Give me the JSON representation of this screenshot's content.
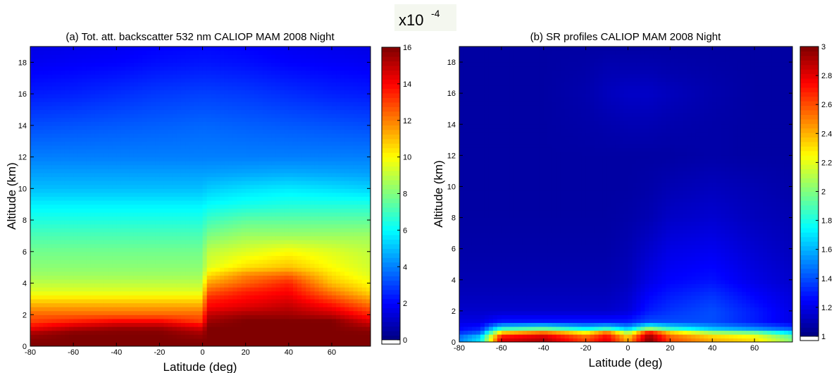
{
  "scale_note": {
    "base": "x10",
    "exp": "-4"
  },
  "chart_data": [
    {
      "type": "heatmap",
      "title": "(a) Tot. att. backscatter 532 nm CALIOP MAM 2008 Night",
      "xlabel": "Latitude (deg)",
      "ylabel": "Altitude (km)",
      "xlim": [
        -80,
        78
      ],
      "ylim": [
        0,
        19
      ],
      "xticks": [
        "-80",
        "-60",
        "-40",
        "-20",
        "0",
        "20",
        "40",
        "60"
      ],
      "xtick_values": [
        -80,
        -60,
        -40,
        -20,
        0,
        20,
        40,
        60
      ],
      "yticks": [
        "0",
        "2",
        "4",
        "6",
        "8",
        "10",
        "12",
        "14",
        "16",
        "18"
      ],
      "ytick_values": [
        0,
        2,
        4,
        6,
        8,
        10,
        12,
        14,
        16,
        18
      ],
      "colorbar": {
        "min": 0,
        "max": 16,
        "ticks": [
          "0",
          "2",
          "4",
          "6",
          "8",
          "10",
          "12",
          "14",
          "16"
        ],
        "tick_values": [
          0,
          2,
          4,
          6,
          8,
          10,
          12,
          14,
          16
        ]
      },
      "colormap": "jet",
      "rows": [
        {
          "lat": [
            -80,
            -60,
            -40,
            -20,
            0,
            2,
            20,
            40,
            60,
            78
          ],
          "v": [
            16,
            16,
            16,
            16,
            16,
            16,
            16,
            16,
            16,
            16
          ],
          "alt": 0.2
        },
        {
          "lat": [
            -80,
            -60,
            -40,
            -20,
            0,
            2,
            20,
            40,
            60,
            78
          ],
          "v": [
            15.5,
            16,
            16,
            16,
            15.5,
            16,
            16,
            16,
            16,
            16
          ],
          "alt": 0.8
        },
        {
          "lat": [
            -80,
            -60,
            -40,
            -20,
            0,
            2,
            20,
            40,
            60,
            78
          ],
          "v": [
            14,
            15,
            15.5,
            15.5,
            14.5,
            16,
            16,
            16,
            16,
            15.5
          ],
          "alt": 1.2
        },
        {
          "lat": [
            -80,
            -60,
            -40,
            -20,
            0,
            2,
            20,
            40,
            60,
            78
          ],
          "v": [
            13,
            13.5,
            14,
            14,
            13,
            15.5,
            16,
            16,
            16,
            14.5
          ],
          "alt": 1.6
        },
        {
          "lat": [
            -80,
            -60,
            -40,
            -20,
            0,
            2,
            20,
            40,
            60,
            78
          ],
          "v": [
            12.5,
            12.5,
            12.5,
            12.5,
            12.5,
            15,
            15.5,
            15.5,
            15,
            13.5
          ],
          "alt": 2
        },
        {
          "lat": [
            -80,
            -60,
            -40,
            -20,
            0,
            2,
            20,
            40,
            60,
            78
          ],
          "v": [
            11.5,
            11.5,
            11.5,
            11.5,
            11.5,
            14,
            14.5,
            15,
            14,
            12.5
          ],
          "alt": 2.5
        },
        {
          "lat": [
            -80,
            -60,
            -40,
            -20,
            0,
            2,
            20,
            40,
            60,
            78
          ],
          "v": [
            10.5,
            10.5,
            10.5,
            10.5,
            10.5,
            13.5,
            14,
            14.5,
            13,
            11.5
          ],
          "alt": 3
        },
        {
          "lat": [
            -80,
            -60,
            -40,
            -20,
            0,
            2,
            20,
            40,
            60,
            78
          ],
          "v": [
            9.5,
            9.5,
            9.5,
            9.5,
            9.5,
            12.5,
            13.5,
            14,
            12,
            10.5
          ],
          "alt": 3.5
        },
        {
          "lat": [
            -80,
            -60,
            -40,
            -20,
            0,
            2,
            20,
            40,
            60,
            78
          ],
          "v": [
            9,
            9,
            9,
            9,
            9,
            11.5,
            12.5,
            13.5,
            11,
            10
          ],
          "alt": 4
        },
        {
          "lat": [
            -80,
            -60,
            -40,
            -20,
            0,
            2,
            20,
            40,
            60,
            78
          ],
          "v": [
            8.5,
            8.5,
            8.5,
            8.5,
            8.5,
            10.5,
            12,
            12.5,
            10.5,
            9.5
          ],
          "alt": 4.5
        },
        {
          "lat": [
            -80,
            -60,
            -40,
            -20,
            0,
            2,
            20,
            40,
            60,
            78
          ],
          "v": [
            8.2,
            8.2,
            8.2,
            8.2,
            8.2,
            9.5,
            10.5,
            11,
            10,
            9.3
          ],
          "alt": 5
        },
        {
          "lat": [
            -80,
            -60,
            -40,
            -20,
            0,
            2,
            20,
            40,
            60,
            78
          ],
          "v": [
            7.8,
            7.8,
            7.8,
            7.8,
            7.8,
            9,
            9.5,
            10,
            9.5,
            9
          ],
          "alt": 6
        },
        {
          "lat": [
            -80,
            -60,
            -40,
            -20,
            0,
            2,
            20,
            40,
            60,
            78
          ],
          "v": [
            7.2,
            7.2,
            7.2,
            7.2,
            7.2,
            8,
            8.5,
            8.5,
            8.5,
            8.5
          ],
          "alt": 7
        },
        {
          "lat": [
            -80,
            -60,
            -40,
            -20,
            0,
            2,
            20,
            40,
            60,
            78
          ],
          "v": [
            6.5,
            6.5,
            6.5,
            6.5,
            6.5,
            7,
            7.5,
            7.5,
            7.5,
            7.5
          ],
          "alt": 8
        },
        {
          "lat": [
            -80,
            -60,
            -40,
            -20,
            0,
            2,
            20,
            40,
            60,
            78
          ],
          "v": [
            5.8,
            5.8,
            5.8,
            5.8,
            5.8,
            6,
            6.3,
            6.5,
            6.5,
            6.5
          ],
          "alt": 9
        },
        {
          "lat": [
            -80,
            -60,
            -40,
            -20,
            0,
            2,
            20,
            40,
            60,
            78
          ],
          "v": [
            5,
            5,
            5,
            5,
            5,
            5.2,
            5.5,
            5.7,
            5.5,
            5.3
          ],
          "alt": 10
        },
        {
          "lat": [
            -80,
            -60,
            -40,
            -20,
            0,
            2,
            20,
            40,
            60,
            78
          ],
          "v": [
            4.5,
            4.5,
            4.5,
            4.5,
            4.5,
            4.5,
            4.6,
            4.7,
            4.6,
            4.5
          ],
          "alt": 11
        },
        {
          "lat": [
            -80,
            -60,
            -40,
            -20,
            0,
            2,
            20,
            40,
            60,
            78
          ],
          "v": [
            4,
            4,
            4,
            4,
            4,
            4,
            4,
            4,
            4,
            4
          ],
          "alt": 12
        },
        {
          "lat": [
            -80,
            -60,
            -40,
            -20,
            0,
            2,
            20,
            40,
            60,
            78
          ],
          "v": [
            3.2,
            3.3,
            3.4,
            3.5,
            3.6,
            3.6,
            3.5,
            3.4,
            3.3,
            3.2
          ],
          "alt": 14
        },
        {
          "lat": [
            -80,
            -60,
            -40,
            -20,
            0,
            2,
            20,
            40,
            60,
            78
          ],
          "v": [
            2.4,
            2.5,
            2.7,
            2.9,
            3,
            3,
            2.9,
            2.7,
            2.5,
            2.4
          ],
          "alt": 16
        },
        {
          "lat": [
            -80,
            -60,
            -40,
            -20,
            0,
            2,
            20,
            40,
            60,
            78
          ],
          "v": [
            1.8,
            1.9,
            2,
            2.2,
            2.3,
            2.3,
            2.2,
            2,
            1.9,
            1.8
          ],
          "alt": 18
        },
        {
          "lat": [
            -80,
            -60,
            -40,
            -20,
            0,
            2,
            20,
            40,
            60,
            78
          ],
          "v": [
            1.6,
            1.7,
            1.8,
            2,
            2.1,
            2.1,
            2,
            1.8,
            1.7,
            1.6
          ],
          "alt": 19
        }
      ]
    },
    {
      "type": "heatmap",
      "title": "(b) SR profiles CALIOP MAM 2008 Night",
      "xlabel": "Latitude (deg)",
      "ylabel": "Altitude (km)",
      "xlim": [
        -80,
        78
      ],
      "ylim": [
        0,
        19
      ],
      "xticks": [
        "-80",
        "-60",
        "-40",
        "-20",
        "0",
        "20",
        "40",
        "60"
      ],
      "xtick_values": [
        -80,
        -60,
        -40,
        -20,
        0,
        20,
        40,
        60
      ],
      "yticks": [
        "0",
        "2",
        "4",
        "6",
        "8",
        "10",
        "12",
        "14",
        "16",
        "18"
      ],
      "ytick_values": [
        0,
        2,
        4,
        6,
        8,
        10,
        12,
        14,
        16,
        18
      ],
      "colorbar": {
        "min": 1,
        "max": 3,
        "ticks": [
          "1",
          "1.2",
          "1.4",
          "1.6",
          "1.8",
          "2",
          "2.2",
          "2.4",
          "2.6",
          "2.8",
          "3"
        ],
        "tick_values": [
          1,
          1.2,
          1.4,
          1.6,
          1.8,
          2,
          2.2,
          2.4,
          2.6,
          2.8,
          3
        ]
      },
      "colormap": "jet",
      "rows": [
        {
          "lat": [
            -80,
            -70,
            -60,
            -40,
            -20,
            -10,
            0,
            10,
            20,
            40,
            60,
            78
          ],
          "v": [
            1.5,
            1.7,
            2.8,
            2.9,
            2.6,
            2.8,
            2.4,
            3,
            2.6,
            2.4,
            2.3,
            2
          ],
          "alt": 0.3
        },
        {
          "lat": [
            -80,
            -70,
            -60,
            -40,
            -20,
            -10,
            0,
            10,
            20,
            40,
            60,
            78
          ],
          "v": [
            1.35,
            1.45,
            2.4,
            2.6,
            2.3,
            2.6,
            2.1,
            2.8,
            2.4,
            2.1,
            2,
            1.7
          ],
          "alt": 0.6
        },
        {
          "lat": [
            -80,
            -70,
            -60,
            -40,
            -20,
            -10,
            0,
            10,
            20,
            40,
            60,
            78
          ],
          "v": [
            1.25,
            1.3,
            1.8,
            1.9,
            1.7,
            1.8,
            1.6,
            2,
            1.8,
            1.6,
            1.5,
            1.4
          ],
          "alt": 0.9
        },
        {
          "lat": [
            -80,
            -70,
            -60,
            -40,
            -20,
            -10,
            0,
            10,
            20,
            40,
            60,
            78
          ],
          "v": [
            1.2,
            1.2,
            1.3,
            1.3,
            1.3,
            1.3,
            1.3,
            1.4,
            1.4,
            1.4,
            1.3,
            1.2
          ],
          "alt": 1.3
        },
        {
          "lat": [
            -80,
            -70,
            -60,
            -40,
            -20,
            -10,
            0,
            10,
            20,
            40,
            60,
            78
          ],
          "v": [
            1.15,
            1.15,
            1.15,
            1.15,
            1.15,
            1.15,
            1.18,
            1.3,
            1.35,
            1.4,
            1.3,
            1.2
          ],
          "alt": 2
        },
        {
          "lat": [
            -80,
            -70,
            -60,
            -40,
            -20,
            -10,
            0,
            10,
            20,
            40,
            60,
            78
          ],
          "v": [
            1.12,
            1.12,
            1.12,
            1.12,
            1.12,
            1.12,
            1.15,
            1.25,
            1.3,
            1.35,
            1.25,
            1.18
          ],
          "alt": 3
        },
        {
          "lat": [
            -80,
            -70,
            -60,
            -40,
            -20,
            -10,
            0,
            10,
            20,
            40,
            60,
            78
          ],
          "v": [
            1.1,
            1.1,
            1.1,
            1.1,
            1.1,
            1.1,
            1.12,
            1.2,
            1.25,
            1.28,
            1.2,
            1.15
          ],
          "alt": 4
        },
        {
          "lat": [
            -80,
            -70,
            -60,
            -40,
            -20,
            -10,
            0,
            10,
            20,
            40,
            60,
            78
          ],
          "v": [
            1.08,
            1.08,
            1.08,
            1.08,
            1.08,
            1.08,
            1.1,
            1.15,
            1.2,
            1.22,
            1.16,
            1.12
          ],
          "alt": 6
        },
        {
          "lat": [
            -80,
            -70,
            -60,
            -40,
            -20,
            -10,
            0,
            10,
            20,
            40,
            60,
            78
          ],
          "v": [
            1.07,
            1.07,
            1.07,
            1.07,
            1.07,
            1.07,
            1.08,
            1.1,
            1.14,
            1.16,
            1.12,
            1.1
          ],
          "alt": 8
        },
        {
          "lat": [
            -80,
            -70,
            -60,
            -40,
            -20,
            -10,
            0,
            10,
            20,
            40,
            60,
            78
          ],
          "v": [
            1.07,
            1.07,
            1.07,
            1.07,
            1.07,
            1.07,
            1.07,
            1.08,
            1.1,
            1.12,
            1.1,
            1.08
          ],
          "alt": 10
        },
        {
          "lat": [
            -80,
            -70,
            -60,
            -40,
            -20,
            -10,
            0,
            10,
            20,
            40,
            60,
            78
          ],
          "v": [
            1.07,
            1.07,
            1.07,
            1.07,
            1.07,
            1.07,
            1.07,
            1.07,
            1.07,
            1.08,
            1.07,
            1.07
          ],
          "alt": 12
        },
        {
          "lat": [
            -80,
            -70,
            -60,
            -40,
            -20,
            -10,
            0,
            10,
            20,
            40,
            60,
            78
          ],
          "v": [
            1.07,
            1.07,
            1.07,
            1.07,
            1.08,
            1.09,
            1.1,
            1.1,
            1.09,
            1.08,
            1.07,
            1.07
          ],
          "alt": 14
        },
        {
          "lat": [
            -80,
            -70,
            -60,
            -40,
            -20,
            -10,
            0,
            10,
            20,
            40,
            60,
            78
          ],
          "v": [
            1.07,
            1.07,
            1.07,
            1.07,
            1.09,
            1.12,
            1.14,
            1.14,
            1.12,
            1.09,
            1.07,
            1.07
          ],
          "alt": 16
        },
        {
          "lat": [
            -80,
            -70,
            -60,
            -40,
            -20,
            -10,
            0,
            10,
            20,
            40,
            60,
            78
          ],
          "v": [
            1.07,
            1.07,
            1.07,
            1.07,
            1.08,
            1.1,
            1.1,
            1.1,
            1.09,
            1.08,
            1.07,
            1.07
          ],
          "alt": 17.5
        },
        {
          "lat": [
            -80,
            -70,
            -60,
            -40,
            -20,
            -10,
            0,
            10,
            20,
            40,
            60,
            78
          ],
          "v": [
            1.07,
            1.07,
            1.07,
            1.07,
            1.07,
            1.07,
            1.07,
            1.07,
            1.07,
            1.07,
            1.07,
            1.07
          ],
          "alt": 19
        }
      ]
    }
  ]
}
